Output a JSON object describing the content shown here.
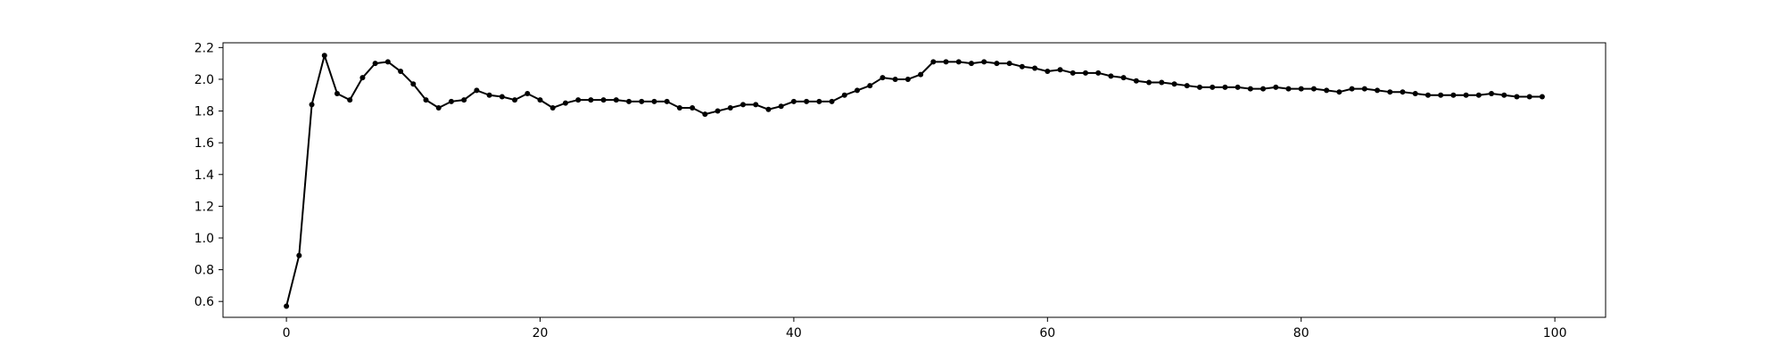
{
  "chart_data": {
    "type": "line",
    "title": "",
    "xlabel": "",
    "ylabel": "",
    "xlim": [
      -5,
      104
    ],
    "ylim": [
      0.5,
      2.23
    ],
    "grid": false,
    "legend": "none",
    "xticks": [
      0,
      20,
      40,
      60,
      80,
      100
    ],
    "xtick_labels": [
      "0",
      "20",
      "40",
      "60",
      "80",
      "100"
    ],
    "yticks": [
      0.6,
      0.8,
      1.0,
      1.2,
      1.4,
      1.6,
      1.8,
      2.0,
      2.2
    ],
    "ytick_labels": [
      "0.6",
      "0.8",
      "1.0",
      "1.2",
      "1.4",
      "1.6",
      "1.8",
      "2.0",
      "2.2"
    ],
    "series": [
      {
        "name": "series-1",
        "color": "#000000",
        "marker": "circle",
        "x": [
          0,
          1,
          2,
          3,
          4,
          5,
          6,
          7,
          8,
          9,
          10,
          11,
          12,
          13,
          14,
          15,
          16,
          17,
          18,
          19,
          20,
          21,
          22,
          23,
          24,
          25,
          26,
          27,
          28,
          29,
          30,
          31,
          32,
          33,
          34,
          35,
          36,
          37,
          38,
          39,
          40,
          41,
          42,
          43,
          44,
          45,
          46,
          47,
          48,
          49,
          50,
          51,
          52,
          53,
          54,
          55,
          56,
          57,
          58,
          59,
          60,
          61,
          62,
          63,
          64,
          65,
          66,
          67,
          68,
          69,
          70,
          71,
          72,
          73,
          74,
          75,
          76,
          77,
          78,
          79,
          80,
          81,
          82,
          83,
          84,
          85,
          86,
          87,
          88,
          89,
          90,
          91,
          92,
          93,
          94,
          95,
          96,
          97,
          98,
          99
        ],
        "values": [
          0.57,
          0.89,
          1.84,
          2.15,
          1.91,
          1.87,
          2.01,
          2.1,
          2.11,
          2.05,
          1.97,
          1.87,
          1.82,
          1.86,
          1.87,
          1.93,
          1.9,
          1.89,
          1.87,
          1.91,
          1.87,
          1.82,
          1.85,
          1.87,
          1.87,
          1.87,
          1.87,
          1.86,
          1.86,
          1.86,
          1.86,
          1.82,
          1.82,
          1.78,
          1.8,
          1.82,
          1.84,
          1.84,
          1.81,
          1.83,
          1.86,
          1.86,
          1.86,
          1.86,
          1.9,
          1.93,
          1.96,
          2.01,
          2.0,
          2.0,
          2.03,
          2.11,
          2.11,
          2.11,
          2.1,
          2.11,
          2.1,
          2.1,
          2.08,
          2.07,
          2.05,
          2.06,
          2.04,
          2.04,
          2.04,
          2.02,
          2.01,
          1.99,
          1.98,
          1.98,
          1.97,
          1.96,
          1.95,
          1.95,
          1.95,
          1.95,
          1.94,
          1.94,
          1.95,
          1.94,
          1.94,
          1.94,
          1.93,
          1.92,
          1.94,
          1.94,
          1.93,
          1.92,
          1.92,
          1.91,
          1.9,
          1.9,
          1.9,
          1.9,
          1.9,
          1.91,
          1.9,
          1.89,
          1.89,
          1.89
        ]
      }
    ]
  }
}
